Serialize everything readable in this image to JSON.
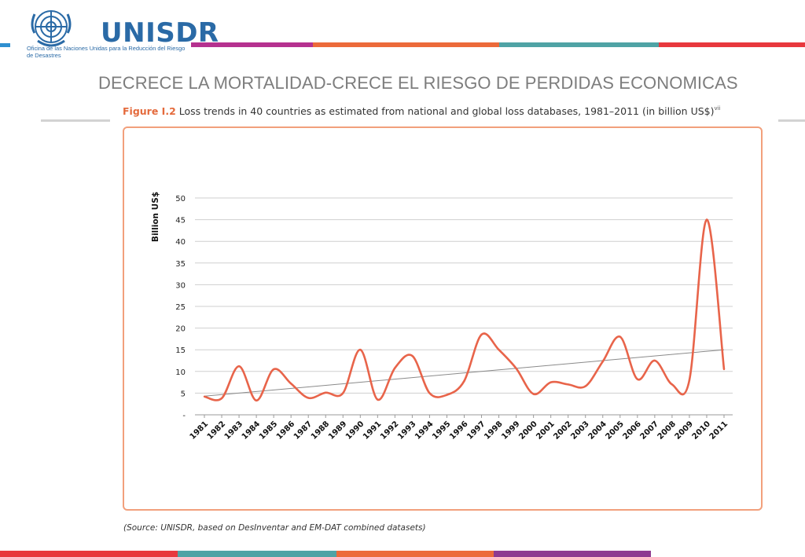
{
  "brand": {
    "logo_text": "UNISDR",
    "logo_subtitle": "Oficina de las Naciones Unidas para la Reducción del Riesgo de Desastres",
    "colors": {
      "blue": "#2a6aa6",
      "magenta": "#b5318f",
      "orange": "#ec6a3a",
      "teal": "#4fa3a5",
      "red": "#e8383d",
      "purple": "#8e3a91"
    }
  },
  "slide": {
    "title": "DECRECE LA MORTALIDAD-CRECE EL RIESGO DE PERDIDAS ECONOMICAS"
  },
  "figure": {
    "label": "Figure I.2",
    "caption": "Loss trends in 40 countries as estimated from national and global loss databases, 1981–2011 (in billion US$)",
    "superscript": "vii",
    "source": "(Source: UNISDR, based on DesInventar and EM-DAT combined datasets)"
  },
  "chart_data": {
    "type": "line",
    "ylabel": "Billion US$",
    "ylim": [
      0,
      50
    ],
    "yticks": [
      "-",
      "5",
      "10",
      "15",
      "20",
      "25",
      "30",
      "35",
      "40",
      "45",
      "50"
    ],
    "categories": [
      "1981",
      "1982",
      "1983",
      "1984",
      "1985",
      "1986",
      "1987",
      "1988",
      "1989",
      "1990",
      "1991",
      "1992",
      "1993",
      "1994",
      "1995",
      "1996",
      "1997",
      "1998",
      "1999",
      "2000",
      "2001",
      "2002",
      "2003",
      "2004",
      "2005",
      "2006",
      "2007",
      "2008",
      "2009",
      "2010",
      "2011"
    ],
    "series": [
      {
        "color": "#e8644a",
        "values": [
          4.2,
          3.8,
          11.2,
          3.3,
          10.5,
          7.2,
          3.9,
          5.1,
          5.0,
          15.0,
          3.5,
          10.8,
          13.6,
          5.0,
          4.6,
          7.8,
          18.5,
          15.0,
          10.7,
          4.8,
          7.5,
          7.0,
          6.6,
          12.3,
          18.0,
          8.2,
          12.5,
          7.0,
          8.0,
          45.0,
          10.5
        ]
      }
    ],
    "trendline": {
      "color": "#8a8a8a",
      "start": 4.3,
      "end": 15.0
    },
    "grid": true
  }
}
